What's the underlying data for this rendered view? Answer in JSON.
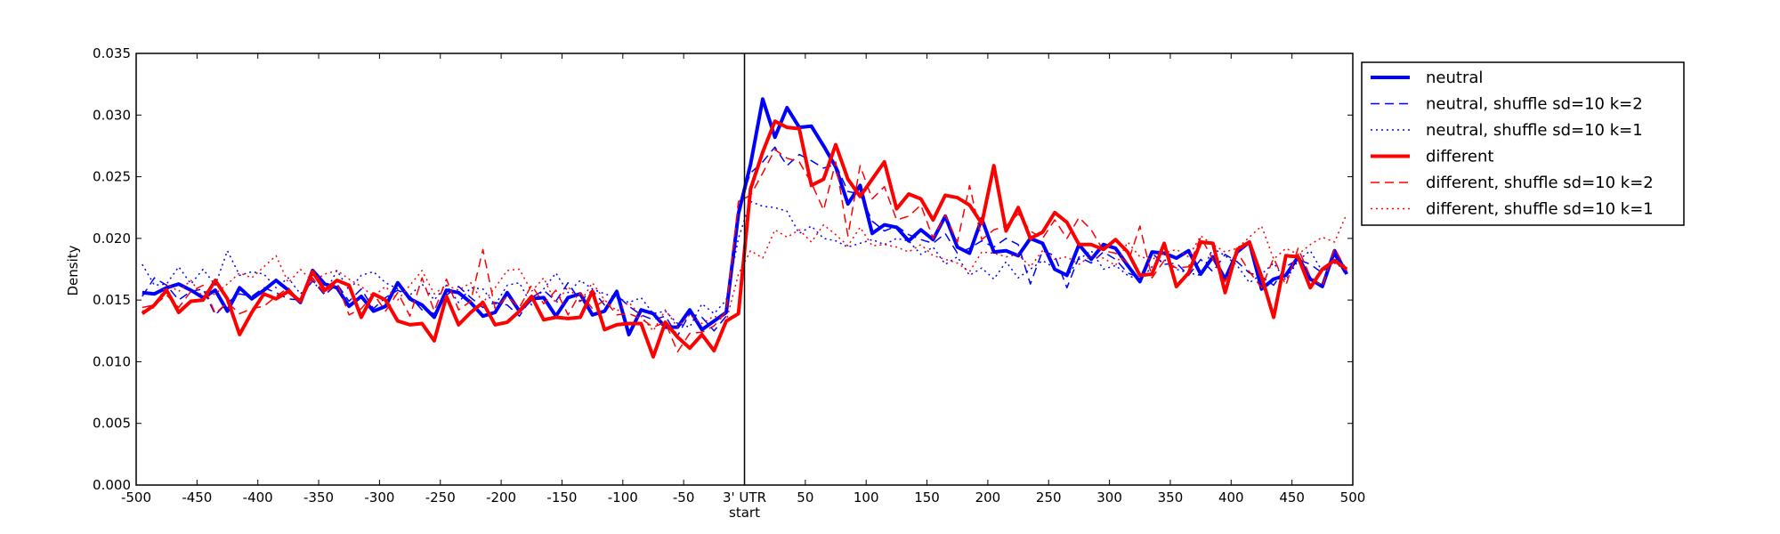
{
  "chart_data": {
    "type": "line",
    "xlabel": "",
    "ylabel": "Density",
    "xlim": [
      -500,
      500
    ],
    "ylim": [
      0,
      0.035
    ],
    "x_ticks": [
      -500,
      -450,
      -400,
      -350,
      -300,
      -250,
      -200,
      -150,
      -100,
      -50,
      0,
      50,
      100,
      150,
      200,
      250,
      300,
      350,
      400,
      450,
      500
    ],
    "x_tick_labels": [
      "-500",
      "-450",
      "-400",
      "-350",
      "-300",
      "-250",
      "-200",
      "-150",
      "-100",
      "-50",
      "3' UTR\nstart",
      "50",
      "100",
      "150",
      "200",
      "250",
      "300",
      "350",
      "400",
      "450",
      "500"
    ],
    "y_ticks": [
      0,
      0.005,
      0.01,
      0.015,
      0.02,
      0.025,
      0.03,
      0.035
    ],
    "y_tick_labels": [
      "0.000",
      "0.005",
      "0.010",
      "0.015",
      "0.020",
      "0.025",
      "0.030",
      "0.035"
    ],
    "vline_x": 0,
    "grid": false,
    "legend_position": "outside-right",
    "x": [
      -495,
      -485,
      -475,
      -465,
      -455,
      -445,
      -435,
      -425,
      -415,
      -405,
      -395,
      -385,
      -375,
      -365,
      -355,
      -345,
      -335,
      -325,
      -315,
      -305,
      -295,
      -285,
      -275,
      -265,
      -255,
      -245,
      -235,
      -225,
      -215,
      -205,
      -195,
      -185,
      -175,
      -165,
      -155,
      -145,
      -135,
      -125,
      -115,
      -105,
      -95,
      -85,
      -75,
      -65,
      -55,
      -45,
      -35,
      -25,
      -15,
      -5,
      5,
      15,
      25,
      35,
      45,
      55,
      65,
      75,
      85,
      95,
      105,
      115,
      125,
      135,
      145,
      155,
      165,
      175,
      185,
      195,
      205,
      215,
      225,
      235,
      245,
      255,
      265,
      275,
      285,
      295,
      305,
      315,
      325,
      335,
      345,
      355,
      365,
      375,
      385,
      395,
      405,
      415,
      425,
      435,
      445,
      455,
      465,
      475,
      485,
      495
    ],
    "series": [
      {
        "name": "neutral",
        "color": "#0000ff",
        "style": "solid",
        "width": 4,
        "values": [
          0.0156,
          0.0155,
          0.016,
          0.0163,
          0.0158,
          0.0152,
          0.0158,
          0.0141,
          0.016,
          0.0151,
          0.0158,
          0.0166,
          0.0158,
          0.0148,
          0.0174,
          0.0163,
          0.016,
          0.0145,
          0.0153,
          0.0141,
          0.0145,
          0.0164,
          0.0151,
          0.0146,
          0.0136,
          0.0158,
          0.0156,
          0.0148,
          0.0137,
          0.014,
          0.0156,
          0.0141,
          0.0151,
          0.0152,
          0.0137,
          0.0152,
          0.0155,
          0.0138,
          0.0141,
          0.0157,
          0.0122,
          0.0142,
          0.0139,
          0.0128,
          0.0128,
          0.0142,
          0.0126,
          0.0133,
          0.014,
          0.022,
          0.026,
          0.0313,
          0.0282,
          0.0306,
          0.029,
          0.0291,
          0.0275,
          0.0258,
          0.0228,
          0.0243,
          0.0204,
          0.0211,
          0.0209,
          0.0198,
          0.0207,
          0.0199,
          0.0218,
          0.0193,
          0.0188,
          0.0216,
          0.0189,
          0.019,
          0.0186,
          0.02,
          0.0196,
          0.0175,
          0.017,
          0.0195,
          0.0183,
          0.0195,
          0.0192,
          0.0178,
          0.0165,
          0.0189,
          0.0188,
          0.0184,
          0.019,
          0.0171,
          0.0185,
          0.0167,
          0.0189,
          0.0197,
          0.0159,
          0.0167,
          0.017,
          0.0185,
          0.0167,
          0.0161,
          0.019,
          0.0171
        ]
      },
      {
        "name": "neutral, shuffle sd=10 k=2",
        "color": "#0000ff",
        "style": "dashed",
        "width": 1.5,
        "values": [
          0.0153,
          0.0168,
          0.0162,
          0.015,
          0.0157,
          0.0159,
          0.0138,
          0.0148,
          0.0155,
          0.0153,
          0.016,
          0.0156,
          0.0151,
          0.015,
          0.0166,
          0.0154,
          0.0163,
          0.0149,
          0.0159,
          0.0143,
          0.0152,
          0.0158,
          0.0153,
          0.0142,
          0.0139,
          0.0154,
          0.0161,
          0.0152,
          0.0144,
          0.0148,
          0.0146,
          0.0137,
          0.0152,
          0.0158,
          0.0149,
          0.0164,
          0.0149,
          0.0158,
          0.0146,
          0.0154,
          0.0145,
          0.0138,
          0.0134,
          0.0137,
          0.0121,
          0.0139,
          0.0136,
          0.0125,
          0.0137,
          0.0225,
          0.0253,
          0.0262,
          0.0274,
          0.0259,
          0.0268,
          0.0263,
          0.0257,
          0.026,
          0.0238,
          0.0236,
          0.0214,
          0.0206,
          0.021,
          0.0203,
          0.0199,
          0.0196,
          0.0204,
          0.0188,
          0.0192,
          0.0198,
          0.0193,
          0.02,
          0.0195,
          0.0163,
          0.019,
          0.0186,
          0.016,
          0.0185,
          0.018,
          0.0189,
          0.0183,
          0.0172,
          0.0168,
          0.0188,
          0.0179,
          0.018,
          0.017,
          0.0183,
          0.0173,
          0.0187,
          0.0181,
          0.0172,
          0.0169,
          0.0162,
          0.0177,
          0.0183,
          0.0179,
          0.0172,
          0.0186,
          0.0169
        ]
      },
      {
        "name": "neutral, shuffle sd=10 k=1",
        "color": "#0000ff",
        "style": "dotted",
        "width": 1.5,
        "values": [
          0.0179,
          0.0162,
          0.0163,
          0.0177,
          0.0163,
          0.0175,
          0.0162,
          0.019,
          0.017,
          0.0173,
          0.0171,
          0.016,
          0.0168,
          0.0155,
          0.0165,
          0.0155,
          0.0174,
          0.0158,
          0.017,
          0.0173,
          0.0164,
          0.0159,
          0.0154,
          0.0163,
          0.015,
          0.0162,
          0.0148,
          0.016,
          0.0159,
          0.0146,
          0.0162,
          0.0164,
          0.0146,
          0.0159,
          0.0172,
          0.0156,
          0.0166,
          0.0159,
          0.0155,
          0.0152,
          0.0148,
          0.0152,
          0.0139,
          0.0141,
          0.0131,
          0.0128,
          0.0147,
          0.0139,
          0.015,
          0.02,
          0.023,
          0.0226,
          0.0225,
          0.0222,
          0.0204,
          0.021,
          0.02,
          0.0198,
          0.0193,
          0.0196,
          0.0199,
          0.0195,
          0.02,
          0.0198,
          0.0187,
          0.0193,
          0.0179,
          0.0185,
          0.017,
          0.0176,
          0.0167,
          0.0181,
          0.0168,
          0.0175,
          0.0182,
          0.0176,
          0.0169,
          0.0183,
          0.019,
          0.0175,
          0.0178,
          0.017,
          0.0166,
          0.0177,
          0.0183,
          0.0175,
          0.0172,
          0.017,
          0.0192,
          0.0186,
          0.0178,
          0.0164,
          0.0171,
          0.018,
          0.0166,
          0.0182,
          0.019,
          0.0173,
          0.018,
          0.0174
        ]
      },
      {
        "name": "different",
        "color": "#ff0000",
        "style": "solid",
        "width": 4,
        "values": [
          0.0139,
          0.0146,
          0.0158,
          0.014,
          0.0149,
          0.015,
          0.0166,
          0.0151,
          0.0122,
          0.014,
          0.0155,
          0.0151,
          0.0157,
          0.0149,
          0.0173,
          0.0158,
          0.0166,
          0.0162,
          0.0136,
          0.0155,
          0.015,
          0.0133,
          0.013,
          0.0131,
          0.0117,
          0.0153,
          0.013,
          0.014,
          0.0148,
          0.013,
          0.0132,
          0.0141,
          0.0153,
          0.0134,
          0.0136,
          0.0135,
          0.0136,
          0.0157,
          0.0126,
          0.013,
          0.0131,
          0.0131,
          0.0104,
          0.0132,
          0.012,
          0.0111,
          0.0122,
          0.0109,
          0.0133,
          0.0139,
          0.024,
          0.027,
          0.0295,
          0.029,
          0.0289,
          0.0243,
          0.0248,
          0.0276,
          0.0248,
          0.0234,
          0.0248,
          0.0262,
          0.0224,
          0.0236,
          0.0232,
          0.0215,
          0.0235,
          0.0233,
          0.0227,
          0.0212,
          0.0259,
          0.0206,
          0.0225,
          0.02,
          0.0205,
          0.0221,
          0.0213,
          0.0195,
          0.0195,
          0.0191,
          0.0199,
          0.0189,
          0.017,
          0.0171,
          0.0196,
          0.0161,
          0.0172,
          0.0197,
          0.0196,
          0.0156,
          0.0191,
          0.0197,
          0.0169,
          0.0136,
          0.0186,
          0.0185,
          0.016,
          0.0175,
          0.0182,
          0.0175
        ]
      },
      {
        "name": "different, shuffle sd=10 k=2",
        "color": "#ff0000",
        "style": "dashed",
        "width": 1.5,
        "values": [
          0.0144,
          0.0146,
          0.0154,
          0.0144,
          0.0157,
          0.0162,
          0.0139,
          0.0148,
          0.0139,
          0.0143,
          0.0145,
          0.0153,
          0.016,
          0.0148,
          0.0168,
          0.0155,
          0.0164,
          0.0138,
          0.0143,
          0.0155,
          0.0141,
          0.0156,
          0.0137,
          0.0168,
          0.0141,
          0.0167,
          0.0142,
          0.0149,
          0.0191,
          0.0143,
          0.0153,
          0.0144,
          0.0162,
          0.0147,
          0.0158,
          0.0138,
          0.0156,
          0.0143,
          0.015,
          0.0138,
          0.0139,
          0.0135,
          0.0128,
          0.0132,
          0.0108,
          0.0123,
          0.0124,
          0.0129,
          0.0141,
          0.023,
          0.0235,
          0.0253,
          0.0272,
          0.0265,
          0.0262,
          0.0245,
          0.0223,
          0.0262,
          0.0202,
          0.0259,
          0.0232,
          0.0242,
          0.0215,
          0.0218,
          0.0227,
          0.02,
          0.0219,
          0.0197,
          0.0243,
          0.0199,
          0.0207,
          0.021,
          0.022,
          0.0206,
          0.02,
          0.0215,
          0.02,
          0.0217,
          0.0207,
          0.019,
          0.0188,
          0.018,
          0.021,
          0.0168,
          0.0182,
          0.0176,
          0.0177,
          0.0201,
          0.0183,
          0.0165,
          0.0189,
          0.0173,
          0.016,
          0.0184,
          0.0162,
          0.0192,
          0.0169,
          0.0161,
          0.0192,
          0.0174
        ]
      },
      {
        "name": "different, shuffle sd=10 k=1",
        "color": "#ff0000",
        "style": "dotted",
        "width": 1.5,
        "values": [
          0.0141,
          0.0144,
          0.0163,
          0.0157,
          0.0166,
          0.0152,
          0.0155,
          0.0163,
          0.0172,
          0.0168,
          0.0177,
          0.0186,
          0.0164,
          0.0175,
          0.0165,
          0.0171,
          0.0174,
          0.0167,
          0.0161,
          0.0153,
          0.0161,
          0.015,
          0.0162,
          0.0174,
          0.0155,
          0.0162,
          0.0158,
          0.0164,
          0.0148,
          0.016,
          0.0174,
          0.0175,
          0.0157,
          0.0168,
          0.0147,
          0.0161,
          0.0148,
          0.0164,
          0.015,
          0.0141,
          0.0148,
          0.0137,
          0.0125,
          0.0142,
          0.0128,
          0.0138,
          0.0131,
          0.0137,
          0.0133,
          0.0171,
          0.019,
          0.0184,
          0.0207,
          0.0201,
          0.0207,
          0.0197,
          0.0211,
          0.0203,
          0.0194,
          0.0209,
          0.0194,
          0.0195,
          0.0193,
          0.0189,
          0.0195,
          0.0186,
          0.0183,
          0.018,
          0.0173,
          0.0189,
          0.0188,
          0.0185,
          0.0187,
          0.0177,
          0.019,
          0.0183,
          0.0185,
          0.0179,
          0.0186,
          0.0184,
          0.0178,
          0.0197,
          0.0185,
          0.0183,
          0.0188,
          0.0191,
          0.0185,
          0.0202,
          0.0195,
          0.0189,
          0.0192,
          0.0201,
          0.021,
          0.0183,
          0.0192,
          0.0187,
          0.0195,
          0.0201,
          0.0197,
          0.022
        ]
      }
    ]
  }
}
